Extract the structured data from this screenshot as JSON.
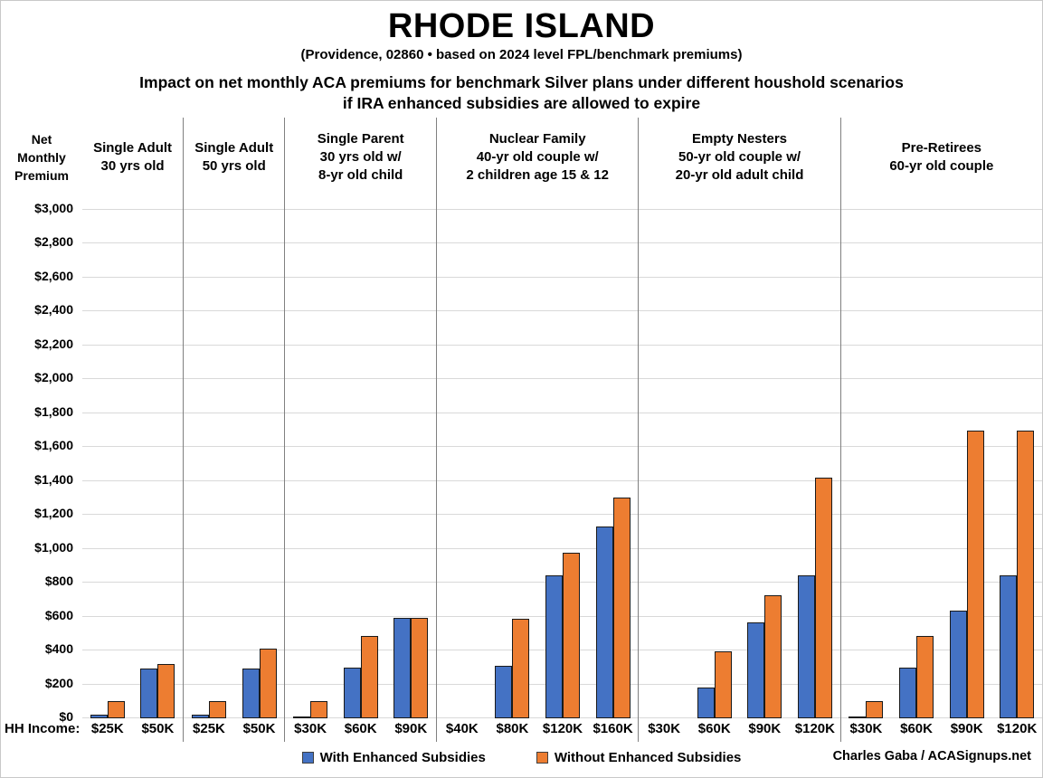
{
  "chart_data": {
    "type": "bar",
    "title": "RHODE ISLAND",
    "subtitle": "(Providence, 02860 • based on 2024 level FPL/benchmark premiums)",
    "heading": [
      "Impact on net monthly ACA premiums for benchmark Silver plans under different houshold scenarios",
      "if IRA enhanced subsidies are allowed to expire"
    ],
    "y_axis": {
      "label_lines": [
        "Net",
        "Monthly",
        "Premium"
      ],
      "min": 0,
      "max": 3000,
      "step": 200,
      "tick_format": "$#,##0"
    },
    "x_axis": {
      "prefix": "HH Income:"
    },
    "series": [
      {
        "name": "With Enhanced Subsidies",
        "color": "#4472C4"
      },
      {
        "name": "Without Enhanced Subsidies",
        "color": "#ED7D31"
      }
    ],
    "grid": true,
    "legend_position": "bottom",
    "groups": [
      {
        "header_lines": [
          "Single Adult",
          "30 yrs old"
        ],
        "incomes": [
          "$25K",
          "$50K"
        ],
        "with_enhanced": [
          20,
          295
        ],
        "without_enhanced": [
          100,
          320
        ]
      },
      {
        "header_lines": [
          "Single Adult",
          "50 yrs old"
        ],
        "incomes": [
          "$25K",
          "$50K"
        ],
        "with_enhanced": [
          20,
          295
        ],
        "without_enhanced": [
          100,
          410
        ]
      },
      {
        "header_lines": [
          "Single Parent",
          "30 yrs old w/",
          "8-yr old child"
        ],
        "incomes": [
          "$30K",
          "$60K",
          "$90K"
        ],
        "with_enhanced": [
          5,
          300,
          590
        ],
        "without_enhanced": [
          100,
          485,
          590
        ]
      },
      {
        "header_lines": [
          "Nuclear Family",
          "40-yr old couple w/",
          "2 children age 15 & 12"
        ],
        "incomes": [
          "$40K",
          "$80K",
          "$120K",
          "$160K"
        ],
        "with_enhanced": [
          0,
          310,
          845,
          1130
        ],
        "without_enhanced": [
          0,
          585,
          975,
          1300
        ]
      },
      {
        "header_lines": [
          "Empty Nesters",
          "50-yr old couple w/",
          "20-yr old adult child"
        ],
        "incomes": [
          "$30K",
          "$60K",
          "$90K",
          "$120K"
        ],
        "with_enhanced": [
          0,
          180,
          565,
          845
        ],
        "without_enhanced": [
          0,
          395,
          725,
          1420
        ]
      },
      {
        "header_lines": [
          "Pre-Retirees",
          "60-yr old couple"
        ],
        "incomes": [
          "$30K",
          "$60K",
          "$90K",
          "$120K"
        ],
        "with_enhanced": [
          5,
          300,
          635,
          845
        ],
        "without_enhanced": [
          100,
          485,
          1695,
          1695
        ]
      }
    ],
    "credit": "Charles Gaba / ACASignups.net",
    "colors": {
      "bar_border": "#1a1a1a",
      "gridline": "#d9d9d9",
      "divider": "#808080"
    }
  }
}
